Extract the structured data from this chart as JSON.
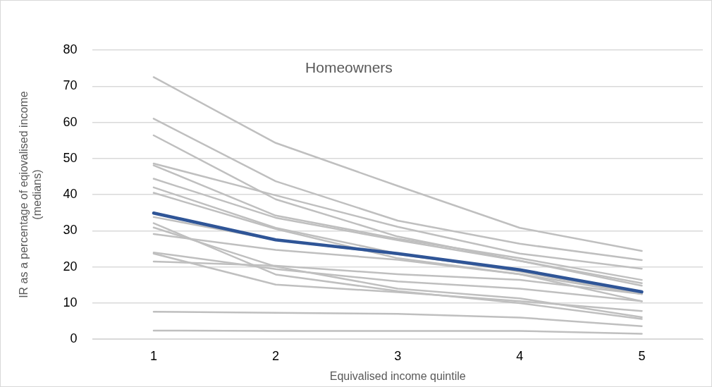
{
  "chart_data": {
    "type": "line",
    "title": "Homeowners",
    "xlabel": "Equivalised income quintile",
    "ylabel": "IR as a percentage of eqiovalised income (medians)",
    "categories": [
      "1",
      "2",
      "3",
      "4",
      "5"
    ],
    "series": [
      {
        "color": "#bfbfbf",
        "values": [
          72.5,
          54.3,
          42.4,
          30.8,
          24.4
        ]
      },
      {
        "color": "#bfbfbf",
        "values": [
          61,
          43.7,
          32.8,
          26.4,
          21.9
        ]
      },
      {
        "color": "#bfbfbf",
        "values": [
          56.4,
          38.7,
          28.4,
          21.7,
          15.5
        ]
      },
      {
        "color": "#bfbfbf",
        "values": [
          48.6,
          39.8,
          31.1,
          23.7,
          19.5
        ]
      },
      {
        "color": "#bfbfbf",
        "values": [
          48.1,
          34.2,
          27.8,
          22.4,
          16.4
        ]
      },
      {
        "color": "#bfbfbf",
        "values": [
          44.4,
          33.6,
          27.4,
          21.7,
          14.8
        ]
      },
      {
        "color": "#bfbfbf",
        "values": [
          42,
          30.8,
          23.7,
          18.7,
          12.5
        ]
      },
      {
        "color": "#bfbfbf",
        "values": [
          40.5,
          30.5,
          22.4,
          18,
          10.5
        ]
      },
      {
        "color": "#bfbfbf",
        "values": [
          33.8,
          27.5,
          23.5,
          19,
          13
        ]
      },
      {
        "color": "#bfbfbf",
        "values": [
          32.1,
          17.9,
          13.3,
          10,
          5.6
        ]
      },
      {
        "color": "#bfbfbf",
        "values": [
          30.9,
          20.1,
          14,
          11.3,
          6.1
        ]
      },
      {
        "color": "#bfbfbf",
        "values": [
          29.1,
          24.7,
          22,
          18,
          12.5
        ]
      },
      {
        "color": "#bfbfbf",
        "values": [
          24,
          19.4,
          16,
          14,
          10.5
        ]
      },
      {
        "color": "#bfbfbf",
        "values": [
          23.7,
          15.1,
          13,
          10.5,
          7.8
        ]
      },
      {
        "color": "#bfbfbf",
        "values": [
          21.5,
          20.3,
          18,
          16.4,
          12.5
        ]
      },
      {
        "color": "#bfbfbf",
        "values": [
          7.6,
          7.3,
          7,
          6,
          3.6
        ]
      },
      {
        "color": "#bfbfbf",
        "values": [
          2.4,
          2.3,
          2.3,
          2.3,
          1.5
        ]
      },
      {
        "color": "#2f5597",
        "values": [
          34.9,
          27.5,
          23.7,
          19.2,
          13.1
        ]
      }
    ],
    "ylim": [
      0,
      80
    ],
    "yticks": [
      0,
      10,
      20,
      30,
      40,
      50,
      60,
      70,
      80
    ],
    "grid": "y",
    "legend": false,
    "marker": "none",
    "line_style": "solid"
  }
}
